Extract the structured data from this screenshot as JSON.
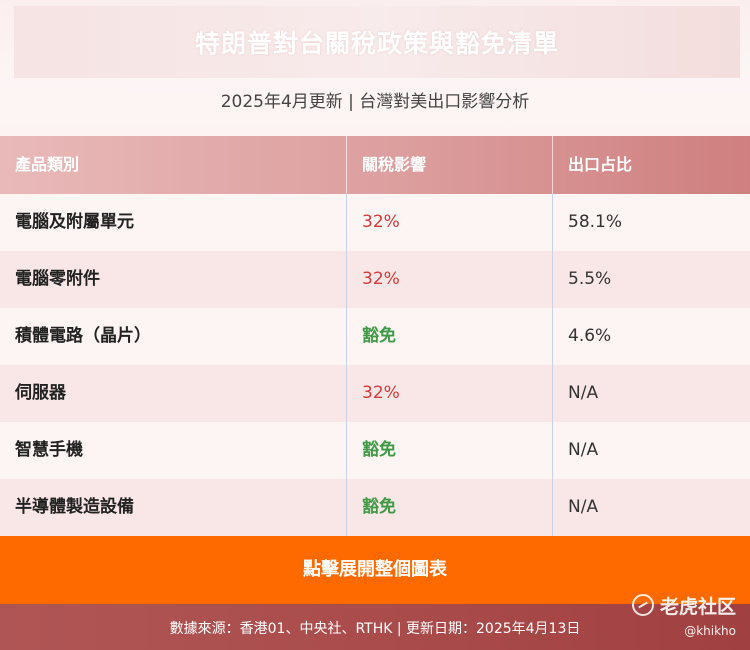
{
  "header": {
    "title": "特朗普對台關稅政策與豁免清單",
    "subtitle": "2025年4月更新 | 台灣對美出口影響分析"
  },
  "table": {
    "columns": [
      "產品類別",
      "關稅影響",
      "出口占比"
    ],
    "rows": [
      {
        "category": "電腦及附屬單元",
        "tariff": "32%",
        "tariff_status": "taxed",
        "share": "58.1%"
      },
      {
        "category": "電腦零附件",
        "tariff": "32%",
        "tariff_status": "taxed",
        "share": "5.5%"
      },
      {
        "category": "積體電路（晶片）",
        "tariff": "豁免",
        "tariff_status": "exempt",
        "share": "4.6%"
      },
      {
        "category": "伺服器",
        "tariff": "32%",
        "tariff_status": "taxed",
        "share": "N/A"
      },
      {
        "category": "智慧手機",
        "tariff": "豁免",
        "tariff_status": "exempt",
        "share": "N/A"
      },
      {
        "category": "半導體製造設備",
        "tariff": "豁免",
        "tariff_status": "exempt",
        "share": "N/A"
      }
    ]
  },
  "expand_button": {
    "label": "點擊展開整個圖表"
  },
  "footer": {
    "text": "數據來源：香港01、中央社、RTHK | 更新日期：2025年4月13日"
  },
  "watermark": {
    "name": "老虎社区",
    "handle": "@khikho",
    "icon": "tiger-logo-icon"
  },
  "colors": {
    "accent_orange": "#ff6a00",
    "taxed_red": "#d43a3a",
    "exempt_green": "#3f9a45",
    "header_row": "#dc9d9d",
    "footer_bg": "#a94a4a"
  }
}
